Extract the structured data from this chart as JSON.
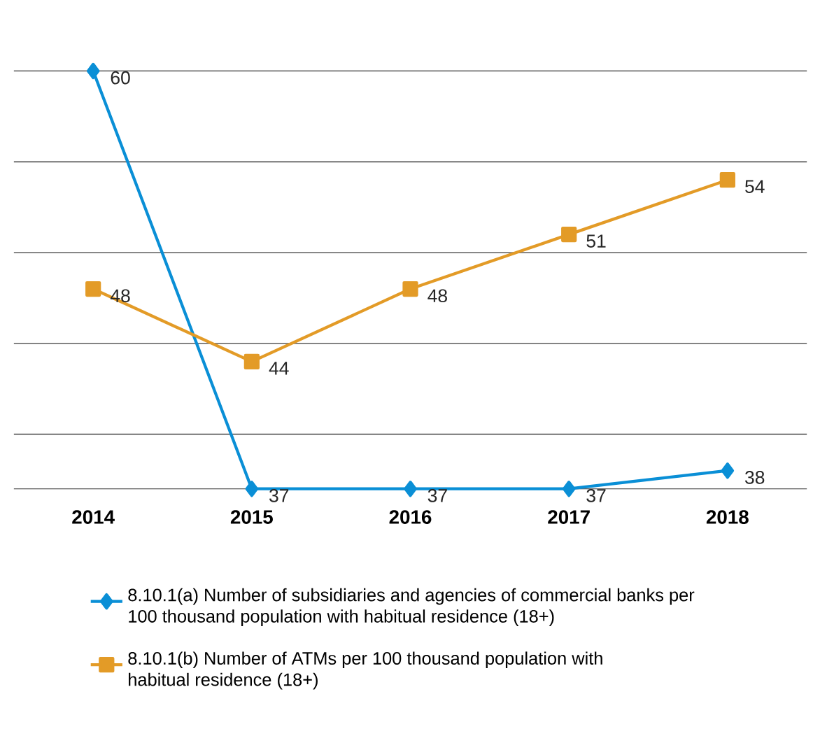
{
  "chart_data": {
    "type": "line",
    "categories": [
      "2014",
      "2015",
      "2016",
      "2017",
      "2018"
    ],
    "series": [
      {
        "name": "8.10.1(a) Number of subsidiaries and agencies of commercial banks per 100 thousand population with habitual residence (18+)",
        "color": "#0a8fd6",
        "marker": "diamond",
        "values": [
          60,
          37,
          37,
          37,
          38
        ]
      },
      {
        "name": "8.10.1(b) Number of ATMs per 100 thousand population with habitual residence (18+)",
        "color": "#e39b27",
        "marker": "square",
        "values": [
          48,
          44,
          48,
          51,
          54
        ]
      }
    ],
    "grid": "y",
    "legend": "bottom",
    "data_labels": true,
    "line_style": "solid"
  }
}
